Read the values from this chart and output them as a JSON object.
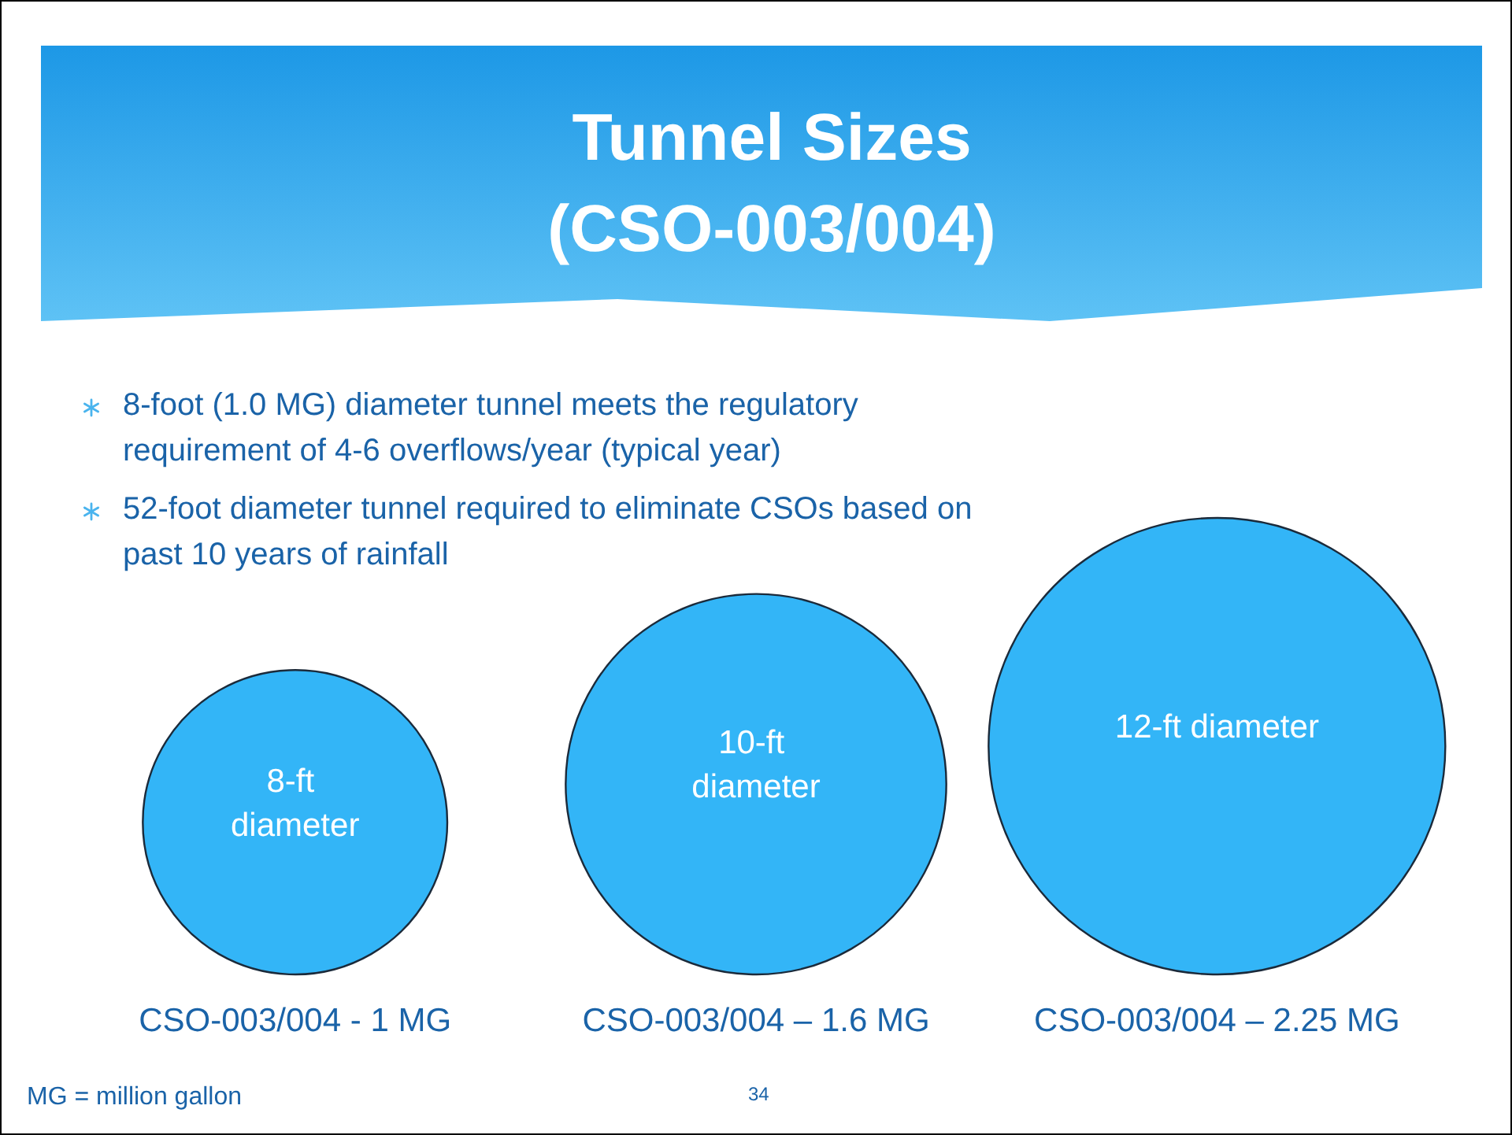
{
  "chart_data": {
    "type": "other",
    "title": "Tunnel Sizes\n(CSO-003/004)",
    "categories": [
      "CSO-003/004 - 1 MG",
      "CSO-003/004 – 1.6 MG",
      "CSO-003/004 – 2.25 MG"
    ],
    "values": [
      8,
      10,
      12
    ],
    "value_labels": [
      "8-ft diameter",
      "10-ft diameter",
      "12-ft diameter"
    ],
    "color": "#33b5f7",
    "annotations": [
      "8-foot (1.0 MG) diameter tunnel meets the regulatory requirement of 4-6 overflows/year (typical year)",
      "52-foot diameter tunnel required to eliminate CSOs based on past 10 years of rainfall",
      "MG = million gallon",
      "34"
    ]
  }
}
